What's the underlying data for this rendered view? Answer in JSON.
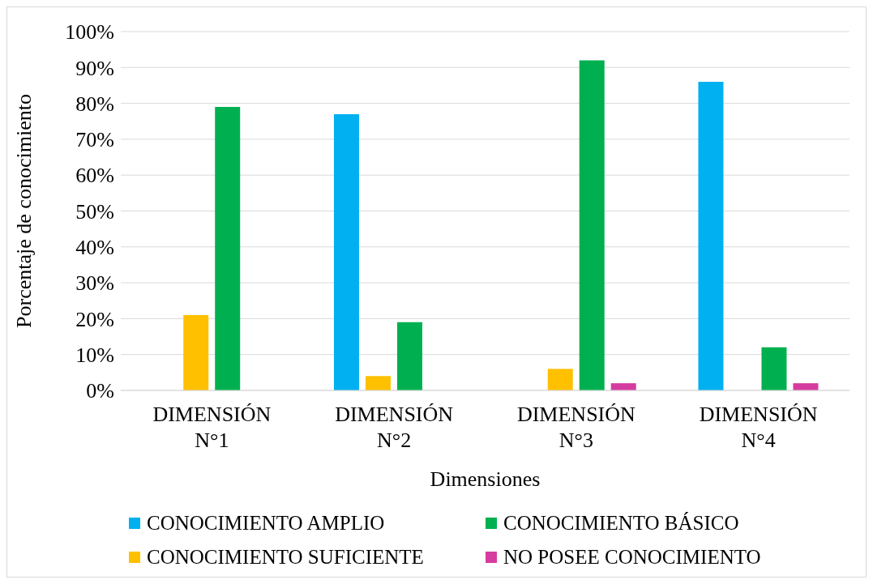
{
  "chart_data": {
    "type": "bar",
    "xlabel": "Dimensiones",
    "ylabel": "Porcentaje de conocimiento",
    "categories": [
      "DIMENSIÓN N°1",
      "DIMENSIÓN N°2",
      "DIMENSIÓN N°3",
      "DIMENSIÓN N°4"
    ],
    "series": [
      {
        "name": "CONOCIMIENTO AMPLIO",
        "color": "#00b0f0",
        "values": [
          0,
          77,
          0,
          86
        ]
      },
      {
        "name": "CONOCIMIENTO SUFICIENTE",
        "color": "#ffc000",
        "values": [
          21,
          4,
          6,
          0
        ]
      },
      {
        "name": "CONOCIMIENTO BÁSICO",
        "color": "#00b050",
        "values": [
          79,
          19,
          92,
          12
        ]
      },
      {
        "name": "NO POSEE CONOCIMIENTO",
        "color": "#d63ca0",
        "values": [
          0,
          0,
          2,
          2
        ]
      }
    ],
    "ylim": [
      0,
      100
    ],
    "yticks": [
      {
        "value": 0,
        "label": "0%"
      },
      {
        "value": 10,
        "label": "10%"
      },
      {
        "value": 20,
        "label": "20%"
      },
      {
        "value": 30,
        "label": "30%"
      },
      {
        "value": 40,
        "label": "40%"
      },
      {
        "value": 50,
        "label": "50%"
      },
      {
        "value": 60,
        "label": "60%"
      },
      {
        "value": 70,
        "label": "70%"
      },
      {
        "value": 80,
        "label": "80%"
      },
      {
        "value": 90,
        "label": "90%"
      },
      {
        "value": 100,
        "label": "100%"
      }
    ],
    "grid": "y",
    "legend": "bottom"
  }
}
